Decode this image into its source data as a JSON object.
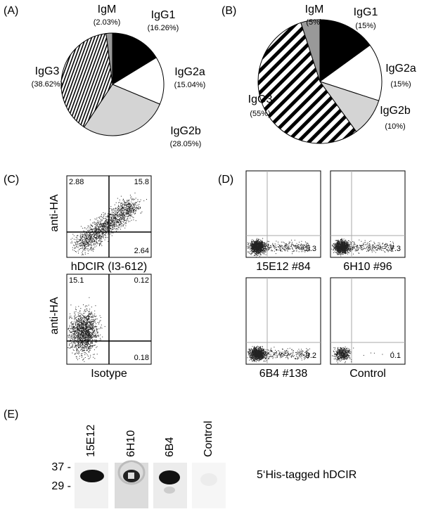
{
  "chart_data": [
    {
      "type": "pie",
      "panel": "(A)",
      "categories": [
        "IgM",
        "IgG1",
        "IgG2a",
        "IgG2b",
        "IgG3"
      ],
      "values": [
        2.03,
        16.26,
        15.04,
        28.05,
        38.62
      ],
      "value_labels": [
        "(2.03%)",
        "(16.26%)",
        "(15.04%)",
        "(28.05%)",
        "(38.62%)"
      ],
      "colors": [
        "#999999",
        "#000000",
        "#ffffff",
        "#d4d4d4",
        "#000000"
      ],
      "hatched": [
        false,
        false,
        false,
        false,
        true
      ]
    },
    {
      "type": "pie",
      "panel": "(B)",
      "categories": [
        "IgM",
        "IgG1",
        "IgG2a",
        "IgG2b",
        "IgG3"
      ],
      "values": [
        5,
        15,
        15,
        10,
        55
      ],
      "value_labels": [
        "(5%)",
        "(15%)",
        "(15%)",
        "(10%)",
        "(55%)"
      ],
      "colors": [
        "#999999",
        "#000000",
        "#ffffff",
        "#d4d4d4",
        "#000000"
      ],
      "hatched": [
        false,
        false,
        false,
        false,
        true
      ]
    }
  ],
  "panel_c": {
    "label": "(C)",
    "y_label": "anti-HA",
    "plots": [
      {
        "x_label": "hDCIR (I3-612)",
        "quadrant_values": [
          2.88,
          15.8,
          2.64
        ]
      },
      {
        "x_label": "Isotype",
        "quadrant_values": [
          15.1,
          0.12,
          0.18
        ]
      }
    ]
  },
  "panel_d": {
    "label": "(D)",
    "plots": [
      {
        "label": "15E12 #84",
        "value": 5.3
      },
      {
        "label": "6H10 #96",
        "value": 7.3
      },
      {
        "label": "6B4 #138",
        "value": 9.2
      },
      {
        "label": "Control",
        "value": 0.1
      }
    ]
  },
  "panel_e": {
    "label": "(E)",
    "lanes": [
      "15E12",
      "6H10",
      "6B4",
      "Control"
    ],
    "markers": [
      "37 -",
      "29 -"
    ],
    "caption": "5‘His-tagged hDCIR"
  }
}
